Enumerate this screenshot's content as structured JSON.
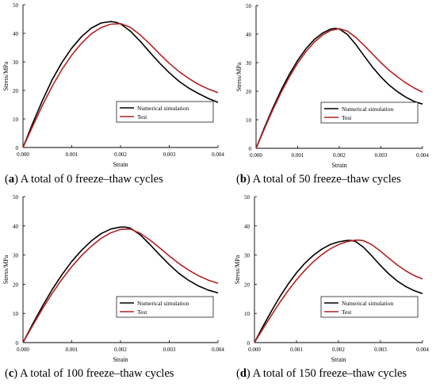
{
  "figure": {
    "panels": [
      {
        "letter": "a",
        "caption": " A total of 0 freeze–thaw cycles"
      },
      {
        "letter": "b",
        "caption": " A total of 50 freeze–thaw cycles"
      },
      {
        "letter": "c",
        "caption": " A total of 100 freeze–thaw cycles"
      },
      {
        "letter": "d",
        "caption": " A total of 150 freeze–thaw cycles"
      }
    ]
  },
  "chart_data": [
    {
      "type": "line",
      "title": "",
      "xlabel": "Strain",
      "ylabel": "Stress/MPa",
      "xlim": [
        0,
        0.004
      ],
      "ylim": [
        0,
        50
      ],
      "xticks": [
        "0.000",
        "0.001",
        "0.002",
        "0.003",
        "0.004"
      ],
      "yticks": [
        "0",
        "10",
        "20",
        "30",
        "40",
        "50"
      ],
      "legend_position": "lower-right",
      "grid": false,
      "series": [
        {
          "name": "Numerical simulation",
          "color": "#000000",
          "x": [
            0,
            0.0002,
            0.0004,
            0.0006,
            0.0008,
            0.001,
            0.0012,
            0.0014,
            0.0016,
            0.0018,
            0.0019,
            0.002,
            0.0022,
            0.0024,
            0.0026,
            0.0028,
            0.003,
            0.0032,
            0.0034,
            0.0036,
            0.0038,
            0.004
          ],
          "y": [
            0,
            8.5,
            16.5,
            23.8,
            29.8,
            34.8,
            38.8,
            41.8,
            43.6,
            44.1,
            43.9,
            43.3,
            40.8,
            37.3,
            33.4,
            29.6,
            26.2,
            23.2,
            20.8,
            18.9,
            17.2,
            15.8
          ]
        },
        {
          "name": "Test",
          "color": "#b22222",
          "x": [
            0,
            0.0002,
            0.0004,
            0.0006,
            0.0008,
            0.001,
            0.0012,
            0.0014,
            0.0016,
            0.0018,
            0.002,
            0.0022,
            0.0024,
            0.0026,
            0.0028,
            0.003,
            0.0032,
            0.0034,
            0.0036,
            0.0038,
            0.004
          ],
          "y": [
            0,
            7.5,
            14.8,
            21.5,
            27.4,
            32.4,
            36.5,
            39.8,
            42.0,
            43.2,
            43.4,
            42.1,
            39.5,
            36.3,
            32.8,
            29.5,
            26.6,
            24.2,
            22.1,
            20.5,
            19.2
          ]
        }
      ]
    },
    {
      "type": "line",
      "title": "",
      "xlabel": "Strain",
      "ylabel": "Stress/MPa",
      "xlim": [
        0,
        0.004
      ],
      "ylim": [
        0,
        50
      ],
      "xticks": [
        "0.000",
        "0.001",
        "0.002",
        "0.003",
        "0.004"
      ],
      "yticks": [
        "0",
        "10",
        "20",
        "30",
        "40",
        "50"
      ],
      "legend_position": "lower-right",
      "grid": false,
      "series": [
        {
          "name": "Numerical simulation",
          "color": "#000000",
          "x": [
            0,
            0.0002,
            0.0004,
            0.0006,
            0.0008,
            0.001,
            0.0012,
            0.0014,
            0.0016,
            0.0018,
            0.0019,
            0.002,
            0.0022,
            0.0024,
            0.0026,
            0.0028,
            0.003,
            0.0032,
            0.0034,
            0.0036,
            0.0038,
            0.004
          ],
          "y": [
            0,
            7.2,
            14.0,
            20.3,
            25.9,
            30.8,
            34.9,
            38.1,
            40.4,
            41.8,
            42.0,
            41.8,
            39.8,
            36.3,
            32.3,
            28.4,
            25.0,
            22.1,
            19.8,
            17.9,
            16.4,
            15.5
          ]
        },
        {
          "name": "Test",
          "color": "#b22222",
          "x": [
            0,
            0.0002,
            0.0004,
            0.0006,
            0.0008,
            0.001,
            0.0012,
            0.0014,
            0.0016,
            0.0018,
            0.002,
            0.0022,
            0.0024,
            0.0026,
            0.0028,
            0.003,
            0.0032,
            0.0034,
            0.0036,
            0.0038,
            0.004
          ],
          "y": [
            0,
            6.8,
            13.4,
            19.5,
            25.0,
            29.8,
            33.9,
            37.2,
            39.7,
            41.3,
            41.9,
            41.0,
            38.8,
            36.0,
            33.0,
            30.0,
            27.3,
            25.0,
            22.9,
            21.1,
            19.7
          ]
        }
      ]
    },
    {
      "type": "line",
      "title": "",
      "xlabel": "Strain",
      "ylabel": "Stress/MPa",
      "xlim": [
        0,
        0.004
      ],
      "ylim": [
        0,
        50
      ],
      "xticks": [
        "0.000",
        "0.001",
        "0.002",
        "0.003",
        "0.004"
      ],
      "yticks": [
        "0",
        "10",
        "20",
        "30",
        "40",
        "50"
      ],
      "legend_position": "lower-right",
      "grid": false,
      "series": [
        {
          "name": "Numerical simulation",
          "color": "#000000",
          "x": [
            0,
            0.0002,
            0.0004,
            0.0006,
            0.0008,
            0.001,
            0.0012,
            0.0014,
            0.0016,
            0.0018,
            0.002,
            0.0021,
            0.0022,
            0.0024,
            0.0026,
            0.0028,
            0.003,
            0.0032,
            0.0034,
            0.0036,
            0.0038,
            0.004
          ],
          "y": [
            0,
            6.4,
            12.5,
            18.2,
            23.3,
            27.8,
            31.6,
            34.8,
            37.3,
            38.9,
            39.6,
            39.6,
            39.2,
            37.0,
            33.7,
            30.1,
            26.7,
            23.7,
            21.3,
            19.4,
            18.0,
            17.0
          ]
        },
        {
          "name": "Test",
          "color": "#b22222",
          "x": [
            0,
            0.0002,
            0.0004,
            0.0006,
            0.0008,
            0.001,
            0.0012,
            0.0014,
            0.0016,
            0.0018,
            0.002,
            0.0022,
            0.0024,
            0.0026,
            0.0028,
            0.003,
            0.0032,
            0.0034,
            0.0036,
            0.0038,
            0.004
          ],
          "y": [
            0,
            5.9,
            11.6,
            16.9,
            21.7,
            26.0,
            29.8,
            33.0,
            35.7,
            37.6,
            38.8,
            38.9,
            37.5,
            35.2,
            32.5,
            29.7,
            27.1,
            24.8,
            22.9,
            21.4,
            20.3
          ]
        }
      ]
    },
    {
      "type": "line",
      "title": "",
      "xlabel": "Strain",
      "ylabel": "Stress/MPa",
      "xlim": [
        0,
        0.004
      ],
      "ylim": [
        0,
        50
      ],
      "xticks": [
        "0.000",
        "0.001",
        "0.002",
        "0.003",
        "0.004"
      ],
      "yticks": [
        "0",
        "10",
        "20",
        "30",
        "40",
        "50"
      ],
      "legend_position": "lower-right",
      "grid": false,
      "series": [
        {
          "name": "Numerical simulation",
          "color": "#000000",
          "x": [
            0,
            0.0002,
            0.0004,
            0.0006,
            0.0008,
            0.001,
            0.0012,
            0.0014,
            0.0016,
            0.0018,
            0.002,
            0.0022,
            0.0023,
            0.0024,
            0.0026,
            0.0028,
            0.003,
            0.0032,
            0.0034,
            0.0036,
            0.0038,
            0.004
          ],
          "y": [
            0,
            5.5,
            10.7,
            15.6,
            20.0,
            23.9,
            27.2,
            29.9,
            32.0,
            33.6,
            34.5,
            35.0,
            35.0,
            34.7,
            32.6,
            29.6,
            26.4,
            23.5,
            21.1,
            19.2,
            17.8,
            16.8
          ]
        },
        {
          "name": "Test",
          "color": "#b22222",
          "x": [
            0,
            0.0002,
            0.0004,
            0.0006,
            0.0008,
            0.001,
            0.0012,
            0.0014,
            0.0016,
            0.0018,
            0.002,
            0.0022,
            0.0024,
            0.0025,
            0.0026,
            0.0028,
            0.003,
            0.0032,
            0.0034,
            0.0036,
            0.0038,
            0.004
          ],
          "y": [
            0,
            4.7,
            9.3,
            13.7,
            17.8,
            21.5,
            24.8,
            27.7,
            30.1,
            32.1,
            33.6,
            34.6,
            35.1,
            35.1,
            34.9,
            33.5,
            31.3,
            28.9,
            26.6,
            24.6,
            23.0,
            21.8
          ]
        }
      ]
    }
  ]
}
